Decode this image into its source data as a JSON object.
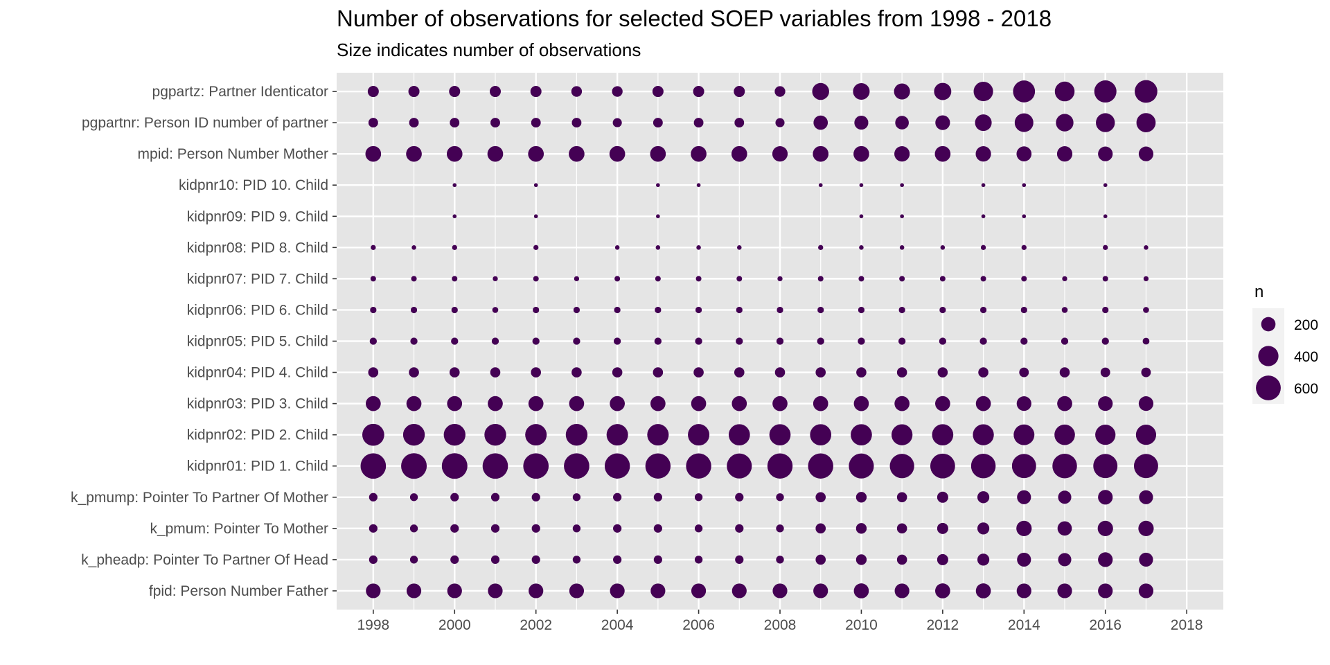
{
  "chart_data": {
    "type": "scatter",
    "title": "Number of observations for selected SOEP variables from 1998 - 2018",
    "subtitle": "Size indicates number of observations",
    "xlabel": "",
    "ylabel": "",
    "xlim": [
      1997.1,
      2018.9
    ],
    "x_ticks": [
      1998,
      2000,
      2002,
      2004,
      2006,
      2008,
      2010,
      2012,
      2014,
      2016,
      2018
    ],
    "grid": true,
    "colors": {
      "panel": "#e5e5e5",
      "grid": "#ffffff",
      "point": "#440154",
      "legend_key_bg": "#f2f2f2"
    },
    "legend": {
      "title": "n",
      "position": "right",
      "items": [
        {
          "label": "200",
          "value": 200
        },
        {
          "label": "400",
          "value": 400
        },
        {
          "label": "600",
          "value": 600
        }
      ]
    },
    "years": [
      1998,
      1999,
      2000,
      2001,
      2002,
      2003,
      2004,
      2005,
      2006,
      2007,
      2008,
      2009,
      2010,
      2011,
      2012,
      2013,
      2014,
      2015,
      2016,
      2017
    ],
    "categories": [
      "pgpartz: Partner Identicator",
      "pgpartnr: Person ID number of partner",
      "mpid: Person Number Mother",
      "kidpnr10: PID 10. Child",
      "kidpnr09: PID 9. Child",
      "kidpnr08: PID 8. Child",
      "kidpnr07: PID 7. Child",
      "kidpnr06: PID 6. Child",
      "kidpnr05: PID 5. Child",
      "kidpnr04: PID 4. Child",
      "kidpnr03: PID 3. Child",
      "kidpnr02: PID 2. Child",
      "kidpnr01: PID 1. Child",
      "k_pmump: Pointer To Partner Of Mother",
      "k_pmum: Pointer To Mother",
      "k_pheadp: Pointer To Partner Of Head",
      "fpid: Person Number Father"
    ],
    "series": [
      {
        "name": "pgpartz: Partner Identicator",
        "values": [
          120,
          120,
          120,
          120,
          120,
          110,
          110,
          120,
          120,
          120,
          110,
          280,
          270,
          250,
          290,
          370,
          470,
          380,
          480,
          500
        ]
      },
      {
        "name": "pgpartnr: Person ID number of partner",
        "values": [
          90,
          90,
          90,
          90,
          90,
          90,
          80,
          90,
          90,
          90,
          80,
          200,
          190,
          180,
          210,
          270,
          340,
          300,
          350,
          360
        ]
      },
      {
        "name": "mpid: Person Number Mother",
        "values": [
          240,
          240,
          240,
          240,
          240,
          240,
          240,
          240,
          240,
          240,
          230,
          240,
          240,
          230,
          240,
          230,
          220,
          230,
          210,
          210
        ]
      },
      {
        "name": "kidpnr10: PID 10. Child",
        "values": [
          null,
          null,
          15,
          null,
          15,
          null,
          null,
          15,
          15,
          null,
          null,
          15,
          15,
          15,
          null,
          15,
          15,
          null,
          15,
          null
        ]
      },
      {
        "name": "kidpnr09: PID 9. Child",
        "values": [
          null,
          null,
          15,
          null,
          15,
          null,
          null,
          15,
          null,
          null,
          null,
          null,
          15,
          15,
          null,
          15,
          15,
          null,
          15,
          null
        ]
      },
      {
        "name": "kidpnr08: PID 8. Child",
        "values": [
          25,
          20,
          25,
          null,
          25,
          null,
          20,
          20,
          20,
          20,
          null,
          25,
          20,
          20,
          20,
          25,
          25,
          null,
          25,
          20
        ]
      },
      {
        "name": "kidpnr07: PID 7. Child",
        "values": [
          30,
          30,
          30,
          25,
          30,
          25,
          30,
          30,
          30,
          30,
          25,
          30,
          30,
          30,
          30,
          30,
          30,
          25,
          30,
          25
        ]
      },
      {
        "name": "kidpnr06: PID 6. Child",
        "values": [
          40,
          40,
          40,
          35,
          40,
          40,
          40,
          40,
          40,
          40,
          40,
          40,
          40,
          40,
          40,
          40,
          40,
          35,
          40,
          35
        ]
      },
      {
        "name": "kidpnr05: PID 5. Child",
        "values": [
          50,
          50,
          50,
          50,
          50,
          50,
          50,
          50,
          50,
          50,
          50,
          50,
          50,
          50,
          50,
          50,
          50,
          50,
          50,
          45
        ]
      },
      {
        "name": "kidpnr04: PID 4. Child",
        "values": [
          100,
          100,
          100,
          100,
          100,
          100,
          100,
          100,
          100,
          100,
          100,
          100,
          100,
          100,
          100,
          100,
          90,
          100,
          90,
          90
        ]
      },
      {
        "name": "kidpnr03: PID 3. Child",
        "values": [
          220,
          220,
          220,
          220,
          220,
          220,
          220,
          220,
          220,
          220,
          220,
          220,
          220,
          220,
          220,
          220,
          210,
          220,
          210,
          210
        ]
      },
      {
        "name": "kidpnr02: PID 2. Child",
        "values": [
          470,
          460,
          460,
          460,
          450,
          460,
          450,
          450,
          450,
          440,
          440,
          440,
          440,
          430,
          440,
          430,
          420,
          410,
          400,
          400
        ]
      },
      {
        "name": "kidpnr01: PID 1. Child",
        "values": [
          630,
          640,
          640,
          630,
          630,
          630,
          620,
          620,
          620,
          610,
          620,
          620,
          610,
          580,
          600,
          590,
          570,
          590,
          570,
          570
        ]
      },
      {
        "name": "k_pmump: Pointer To Partner Of Mother",
        "values": [
          70,
          60,
          70,
          70,
          70,
          60,
          70,
          70,
          60,
          70,
          60,
          100,
          110,
          100,
          120,
          140,
          190,
          170,
          210,
          190
        ]
      },
      {
        "name": "k_pmum: Pointer To Mother",
        "values": [
          70,
          60,
          70,
          70,
          70,
          60,
          70,
          70,
          60,
          70,
          60,
          100,
          110,
          100,
          120,
          140,
          230,
          200,
          230,
          230
        ]
      },
      {
        "name": "k_pheadp: Pointer To Partner Of Head",
        "values": [
          70,
          60,
          70,
          70,
          70,
          60,
          70,
          70,
          60,
          70,
          60,
          100,
          110,
          100,
          120,
          140,
          190,
          170,
          210,
          190
        ]
      },
      {
        "name": "fpid: Person Number Father",
        "values": [
          210,
          210,
          210,
          210,
          210,
          210,
          210,
          210,
          210,
          210,
          210,
          210,
          220,
          210,
          220,
          220,
          210,
          210,
          210,
          210
        ]
      }
    ]
  }
}
